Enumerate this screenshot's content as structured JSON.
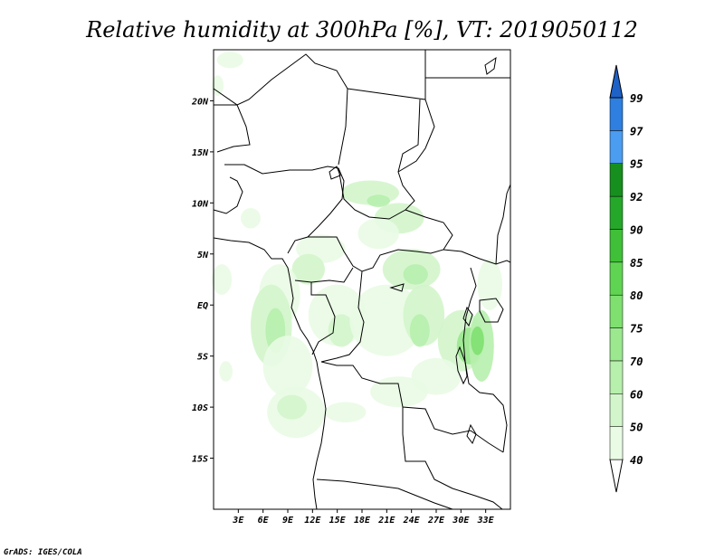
{
  "title": "Relative humidity at 300hPa [%], VT: 2019050112",
  "credit": "GrADS: IGES/COLA",
  "map": {
    "lon_range": [
      0,
      36
    ],
    "lat_range": [
      -20,
      25
    ],
    "lat_ticks": [
      {
        "value": 20,
        "label": "20N"
      },
      {
        "value": 15,
        "label": "15N"
      },
      {
        "value": 10,
        "label": "10N"
      },
      {
        "value": 5,
        "label": "5N"
      },
      {
        "value": 0,
        "label": "EQ"
      },
      {
        "value": -5,
        "label": "5S"
      },
      {
        "value": -10,
        "label": "10S"
      },
      {
        "value": -15,
        "label": "15S"
      }
    ],
    "lon_ticks": [
      {
        "value": 3,
        "label": "3E"
      },
      {
        "value": 6,
        "label": "6E"
      },
      {
        "value": 9,
        "label": "9E"
      },
      {
        "value": 12,
        "label": "12E"
      },
      {
        "value": 15,
        "label": "15E"
      },
      {
        "value": 18,
        "label": "18E"
      },
      {
        "value": 21,
        "label": "21E"
      },
      {
        "value": 24,
        "label": "24E"
      },
      {
        "value": 27,
        "label": "27E"
      },
      {
        "value": 30,
        "label": "30E"
      },
      {
        "value": 33,
        "label": "33E"
      }
    ]
  },
  "colorbar": {
    "levels": [
      {
        "label": "40",
        "color": "#e9fbe4"
      },
      {
        "label": "50",
        "color": "#d3f5cb"
      },
      {
        "label": "60",
        "color": "#b7efad"
      },
      {
        "label": "70",
        "color": "#9be88f"
      },
      {
        "label": "75",
        "color": "#7fe070"
      },
      {
        "label": "80",
        "color": "#5fd452"
      },
      {
        "label": "85",
        "color": "#3fc038"
      },
      {
        "label": "90",
        "color": "#25a82a"
      },
      {
        "label": "92",
        "color": "#178f1e"
      },
      {
        "label": "95",
        "color": "#4a9df0"
      },
      {
        "label": "97",
        "color": "#2e7fe0"
      },
      {
        "label": "99",
        "color": "#1e62c8"
      }
    ],
    "under_color": "#ffffff",
    "over_color": "#1e62c8"
  },
  "humidity_patches": [
    {
      "lon": 2.0,
      "lat": 24.0,
      "rx": 1.6,
      "ry": 0.8,
      "level": 0
    },
    {
      "lon": 0.5,
      "lat": 21.5,
      "rx": 0.7,
      "ry": 1.0,
      "level": 0
    },
    {
      "lon": 19.0,
      "lat": 11.0,
      "rx": 3.5,
      "ry": 1.2,
      "level": 1
    },
    {
      "lon": 20.0,
      "lat": 10.2,
      "rx": 1.4,
      "ry": 0.6,
      "level": 2
    },
    {
      "lon": 22.5,
      "lat": 8.5,
      "rx": 3.0,
      "ry": 1.5,
      "level": 1
    },
    {
      "lon": 20.0,
      "lat": 7.0,
      "rx": 2.5,
      "ry": 1.5,
      "level": 0
    },
    {
      "lon": 13.0,
      "lat": 5.5,
      "rx": 3.0,
      "ry": 1.4,
      "level": 0
    },
    {
      "lon": 11.5,
      "lat": 3.5,
      "rx": 2.0,
      "ry": 1.5,
      "level": 1
    },
    {
      "lon": 8.0,
      "lat": 1.0,
      "rx": 2.5,
      "ry": 3.0,
      "level": 0
    },
    {
      "lon": 7.0,
      "lat": -2.0,
      "rx": 2.5,
      "ry": 4.0,
      "level": 1
    },
    {
      "lon": 7.5,
      "lat": -2.5,
      "rx": 1.2,
      "ry": 2.2,
      "level": 2
    },
    {
      "lon": 9.0,
      "lat": -6.0,
      "rx": 3.0,
      "ry": 3.0,
      "level": 0
    },
    {
      "lon": 10.0,
      "lat": -10.5,
      "rx": 3.5,
      "ry": 2.5,
      "level": 0
    },
    {
      "lon": 9.5,
      "lat": -10.0,
      "rx": 1.8,
      "ry": 1.2,
      "level": 1
    },
    {
      "lon": 15.0,
      "lat": -1.0,
      "rx": 3.5,
      "ry": 3.0,
      "level": 0
    },
    {
      "lon": 15.5,
      "lat": -2.5,
      "rx": 1.6,
      "ry": 1.6,
      "level": 1
    },
    {
      "lon": 21.0,
      "lat": -1.5,
      "rx": 4.5,
      "ry": 3.5,
      "level": 0
    },
    {
      "lon": 24.0,
      "lat": 3.5,
      "rx": 3.5,
      "ry": 2.0,
      "level": 1
    },
    {
      "lon": 24.5,
      "lat": 3.0,
      "rx": 1.5,
      "ry": 1.0,
      "level": 2
    },
    {
      "lon": 25.5,
      "lat": -1.0,
      "rx": 2.5,
      "ry": 3.0,
      "level": 1
    },
    {
      "lon": 25.0,
      "lat": -2.5,
      "rx": 1.2,
      "ry": 1.6,
      "level": 2
    },
    {
      "lon": 30.0,
      "lat": -3.5,
      "rx": 2.8,
      "ry": 3.0,
      "level": 1
    },
    {
      "lon": 31.0,
      "lat": -4.0,
      "rx": 1.5,
      "ry": 1.8,
      "level": 3
    },
    {
      "lon": 32.5,
      "lat": -4.0,
      "rx": 1.5,
      "ry": 3.5,
      "level": 2
    },
    {
      "lon": 32.0,
      "lat": -3.5,
      "rx": 0.8,
      "ry": 1.4,
      "level": 4
    },
    {
      "lon": 27.0,
      "lat": -7.0,
      "rx": 3.0,
      "ry": 1.8,
      "level": 0
    },
    {
      "lon": 22.5,
      "lat": -8.5,
      "rx": 3.5,
      "ry": 1.5,
      "level": 0
    },
    {
      "lon": 16.0,
      "lat": -10.5,
      "rx": 2.5,
      "ry": 1.0,
      "level": 0
    },
    {
      "lon": 1.5,
      "lat": -6.5,
      "rx": 0.8,
      "ry": 1.0,
      "level": 0
    },
    {
      "lon": 1.0,
      "lat": 2.5,
      "rx": 1.2,
      "ry": 1.5,
      "level": 0
    },
    {
      "lon": 33.5,
      "lat": 2.0,
      "rx": 1.5,
      "ry": 2.5,
      "level": 0
    },
    {
      "lon": 4.5,
      "lat": 8.5,
      "rx": 1.2,
      "ry": 1.0,
      "level": 0
    }
  ]
}
